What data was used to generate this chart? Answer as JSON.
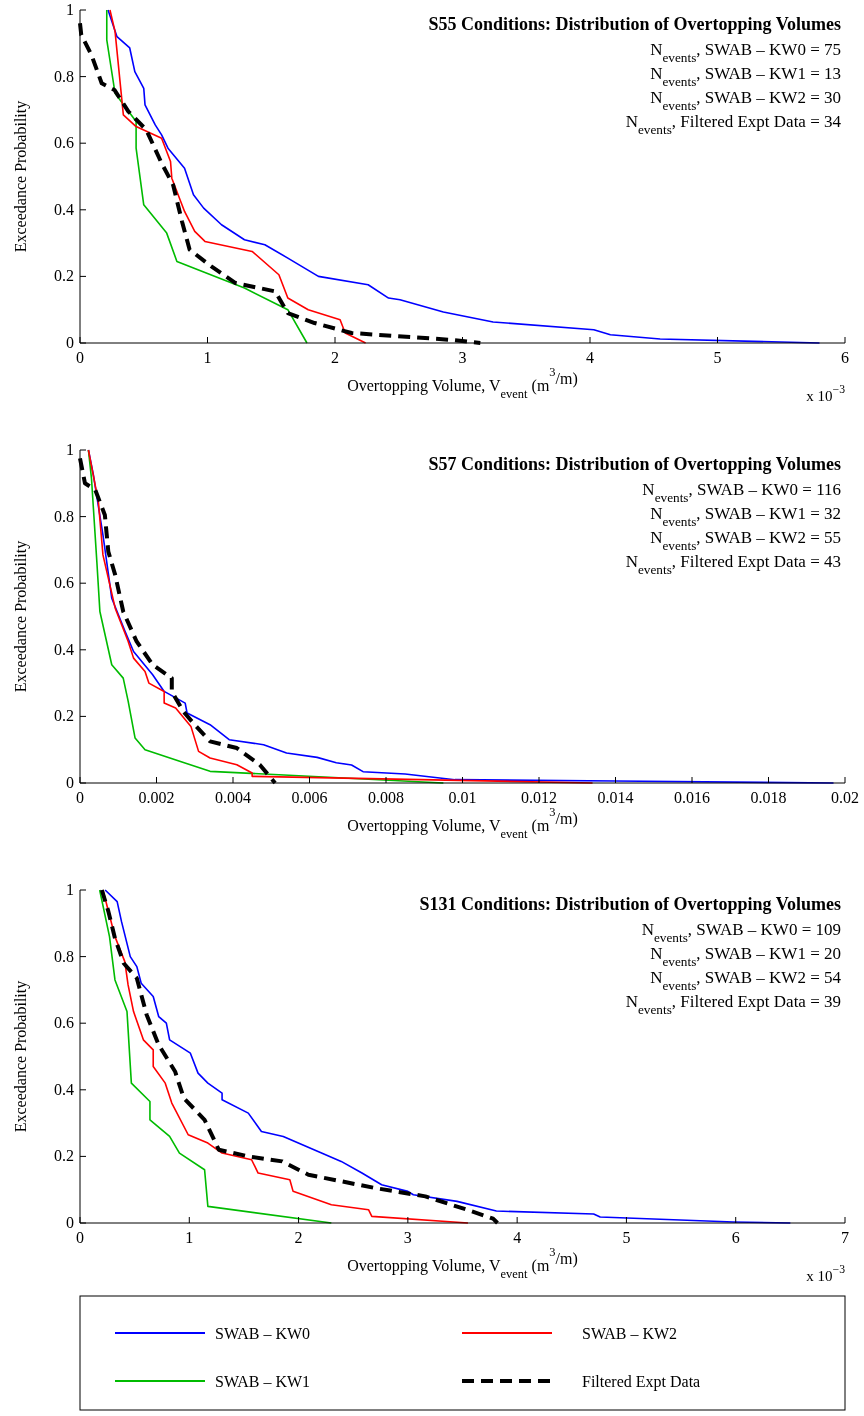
{
  "chart_data": [
    {
      "type": "line",
      "title": "S55 Conditions: Distribution of Overtopping Volumes",
      "xlabel": "Overtopping Volume, V$_{event}$ (m$^{3}$/m)",
      "ylabel": "Exceedance Probability",
      "xlim": [
        0,
        6
      ],
      "xticks": [
        0,
        1,
        2,
        3,
        4,
        5,
        6
      ],
      "ylim": [
        0,
        1
      ],
      "yticks": [
        0,
        0.2,
        0.4,
        0.6,
        0.8,
        1
      ],
      "annotations": [
        "N$_{events}$, SWAB – KW0 = 75",
        "N$_{events}$, SWAB – KW1 = 13",
        "N$_{events}$, SWAB – KW2 = 30",
        "N$_{events}$, Filtered Expt Data = 34",
        {
          "text": "x 10$^{−3}$"
        }
      ],
      "series": [
        {
          "color": "#0000ff",
          "x": [
            0.22,
            0.29,
            0.39,
            0.43,
            0.5,
            0.51,
            0.59,
            0.64,
            0.69,
            0.82,
            0.89,
            0.97,
            1.11,
            1.29,
            1.45,
            1.63,
            1.87,
            2.26,
            2.42,
            2.51,
            2.85,
            3.24,
            4.03,
            4.16,
            4.55,
            5.8
          ],
          "values": [
            1,
            0.92,
            0.886,
            0.815,
            0.765,
            0.715,
            0.655,
            0.625,
            0.585,
            0.525,
            0.445,
            0.405,
            0.355,
            0.31,
            0.295,
            0.255,
            0.2,
            0.175,
            0.135,
            0.13,
            0.093,
            0.063,
            0.04,
            0.025,
            0.012,
            0
          ]
        },
        {
          "color": "#00bb00",
          "x": [
            0.21,
            0.21,
            0.275,
            0.44,
            0.44,
            0.5,
            0.68,
            0.76,
            1.29,
            1.63,
            1.78
          ],
          "values": [
            1,
            0.91,
            0.75,
            0.665,
            0.585,
            0.415,
            0.33,
            0.245,
            0.165,
            0.1,
            0
          ]
        },
        {
          "color": "#ff0000",
          "x": [
            0.235,
            0.275,
            0.34,
            0.44,
            0.64,
            0.71,
            0.72,
            0.82,
            0.9,
            0.98,
            1.35,
            1.56,
            1.63,
            1.79,
            2.04,
            2.08,
            2.24
          ],
          "values": [
            1,
            0.935,
            0.685,
            0.65,
            0.615,
            0.545,
            0.495,
            0.395,
            0.335,
            0.305,
            0.275,
            0.205,
            0.135,
            0.1,
            0.07,
            0.03,
            0
          ]
        },
        {
          "color": "#000000",
          "line_style": "dashed",
          "x": [
            0,
            0.01,
            0.09,
            0.17,
            0.27,
            0.38,
            0.52,
            0.64,
            0.73,
            0.8,
            0.86,
            1.03,
            1.22,
            1.53,
            1.63,
            1.84,
            2.13,
            2.89,
            3.14
          ],
          "values": [
            0.96,
            0.925,
            0.865,
            0.78,
            0.76,
            0.695,
            0.64,
            0.54,
            0.475,
            0.365,
            0.28,
            0.23,
            0.18,
            0.155,
            0.09,
            0.06,
            0.03,
            0.01,
            0
          ]
        }
      ]
    },
    {
      "type": "line",
      "title": "S57 Conditions: Distribution of Overtopping Volumes",
      "xlabel": "Overtopping Volume, V$_{event}$ (m$^{3}$/m)",
      "ylabel": "Exceedance Probability",
      "xlim": [
        0,
        0.02
      ],
      "xticks": [
        0,
        0.002,
        0.004,
        0.006,
        0.008,
        0.01,
        0.012,
        0.014,
        0.016,
        0.018,
        0.02
      ],
      "ylim": [
        0,
        1
      ],
      "yticks": [
        0,
        0.2,
        0.4,
        0.6,
        0.8,
        1
      ],
      "annotations": [
        "N$_{events}$, SWAB – KW0 = 116",
        "N$_{events}$, SWAB – KW1 = 32",
        "N$_{events}$, SWAB – KW2 = 55",
        "N$_{events}$, Filtered Expt Data = 43"
      ],
      "series": [
        {
          "color": "#0000ff",
          "x": [
            0.00022,
            0.00035,
            0.0006,
            0.00083,
            0.00118,
            0.0014,
            0.0019,
            0.0022,
            0.00275,
            0.0028,
            0.0034,
            0.0039,
            0.0048,
            0.0054,
            0.0062,
            0.0067,
            0.0071,
            0.0074,
            0.0085,
            0.0098,
            0.014,
            0.0197
          ],
          "values": [
            1,
            0.925,
            0.745,
            0.555,
            0.455,
            0.395,
            0.325,
            0.275,
            0.24,
            0.21,
            0.175,
            0.13,
            0.115,
            0.09,
            0.077,
            0.061,
            0.054,
            0.034,
            0.027,
            0.01,
            0.006,
            0
          ]
        },
        {
          "color": "#00bb00",
          "x": [
            0.00022,
            0.0003,
            0.00044,
            0.00052,
            0.00083,
            0.00113,
            0.00126,
            0.00144,
            0.0017,
            0.0034,
            0.0095
          ],
          "values": [
            1,
            0.915,
            0.665,
            0.515,
            0.355,
            0.315,
            0.245,
            0.135,
            0.1,
            0.035,
            0
          ]
        },
        {
          "color": "#ff0000",
          "x": [
            0.00022,
            0.00048,
            0.0006,
            0.00092,
            0.00126,
            0.0014,
            0.0017,
            0.0018,
            0.0022,
            0.0022,
            0.0025,
            0.0029,
            0.0031,
            0.0034,
            0.0041,
            0.0045,
            0.0045,
            0.0134
          ],
          "values": [
            1,
            0.845,
            0.685,
            0.525,
            0.425,
            0.375,
            0.335,
            0.3,
            0.275,
            0.24,
            0.225,
            0.17,
            0.095,
            0.075,
            0.055,
            0.03,
            0.02,
            0
          ]
        },
        {
          "color": "#000000",
          "line_style": "dashed",
          "x": [
            0,
            0.00013,
            0.0004,
            0.00065,
            0.00074,
            0.00092,
            0.00113,
            0.00148,
            0.0019,
            0.0024,
            0.0024,
            0.0027,
            0.003,
            0.0034,
            0.0041,
            0.0047,
            0.0051
          ],
          "values": [
            0.975,
            0.9,
            0.88,
            0.805,
            0.695,
            0.625,
            0.515,
            0.425,
            0.355,
            0.315,
            0.275,
            0.215,
            0.175,
            0.125,
            0.105,
            0.055,
            0
          ]
        }
      ]
    },
    {
      "type": "line",
      "title": "S131 Conditions: Distribution of Overtopping Volumes",
      "xlabel": "Overtopping Volume, V$_{event}$ (m$^{3}$/m)",
      "ylabel": "Exceedance Probability",
      "xlim": [
        0,
        7
      ],
      "xticks": [
        0,
        1,
        2,
        3,
        4,
        5,
        6,
        7
      ],
      "ylim": [
        0,
        1
      ],
      "yticks": [
        0,
        0.2,
        0.4,
        0.6,
        0.8,
        1
      ],
      "legend": "bottom",
      "annotations": [
        "N$_{events}$, SWAB – KW0 = 109",
        "N$_{events}$, SWAB – KW1 = 20",
        "N$_{events}$, SWAB – KW2 = 54",
        "N$_{events}$, Filtered Expt Data = 39",
        {
          "text": "x 10$^{−3}$"
        }
      ],
      "series": [
        {
          "name": "SWAB – KW0",
          "color": "#0000ff",
          "x": [
            0.23,
            0.34,
            0.38,
            0.46,
            0.52,
            0.56,
            0.67,
            0.72,
            0.79,
            0.82,
            1.01,
            1.08,
            1.17,
            1.3,
            1.3,
            1.54,
            1.66,
            1.86,
            2.21,
            2.39,
            2.58,
            2.76,
            3.0,
            3.05,
            3.45,
            3.81,
            4.7,
            4.76,
            5.98,
            6.5
          ],
          "values": [
            1,
            0.965,
            0.905,
            0.8,
            0.77,
            0.72,
            0.68,
            0.62,
            0.6,
            0.55,
            0.51,
            0.45,
            0.42,
            0.39,
            0.37,
            0.33,
            0.275,
            0.26,
            0.21,
            0.185,
            0.15,
            0.115,
            0.095,
            0.085,
            0.065,
            0.036,
            0.027,
            0.018,
            0.003,
            0
          ]
        },
        {
          "name": "SWAB – KW1",
          "color": "#00bb00",
          "x": [
            0.18,
            0.27,
            0.32,
            0.43,
            0.47,
            0.64,
            0.64,
            0.82,
            0.91,
            1.14,
            1.17,
            2.3
          ],
          "values": [
            1,
            0.86,
            0.73,
            0.635,
            0.42,
            0.365,
            0.31,
            0.26,
            0.21,
            0.16,
            0.05,
            0
          ]
        },
        {
          "name": "SWAB – KW2",
          "color": "#ff0000",
          "x": [
            0.21,
            0.32,
            0.41,
            0.44,
            0.49,
            0.58,
            0.67,
            0.67,
            0.78,
            0.84,
            0.99,
            1.17,
            1.3,
            1.57,
            1.63,
            1.92,
            1.95,
            2.3,
            2.64,
            2.67,
            3.55
          ],
          "values": [
            1,
            0.86,
            0.785,
            0.715,
            0.635,
            0.55,
            0.52,
            0.47,
            0.42,
            0.36,
            0.265,
            0.24,
            0.21,
            0.19,
            0.15,
            0.13,
            0.095,
            0.055,
            0.04,
            0.02,
            0
          ]
        },
        {
          "name": "Filtered Expt Data",
          "color": "#000000",
          "line_style": "dashed",
          "x": [
            0.2,
            0.26,
            0.32,
            0.4,
            0.52,
            0.61,
            0.72,
            0.87,
            0.95,
            1.14,
            1.27,
            1.54,
            1.85,
            2.09,
            2.7,
            3.16,
            3.54,
            3.78,
            3.82
          ],
          "values": [
            1,
            0.935,
            0.855,
            0.78,
            0.735,
            0.625,
            0.535,
            0.455,
            0.375,
            0.31,
            0.22,
            0.2,
            0.185,
            0.145,
            0.105,
            0.08,
            0.04,
            0.013,
            0
          ]
        }
      ]
    }
  ]
}
